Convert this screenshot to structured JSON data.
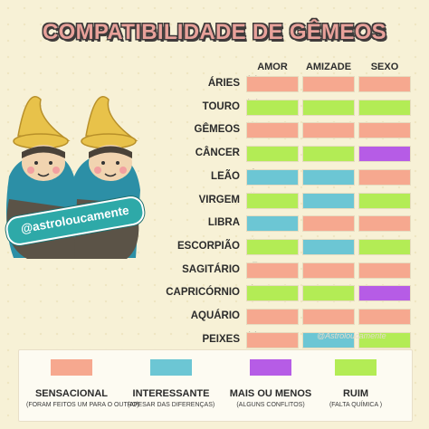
{
  "title": "COMPATIBILIDADE DE GÊMEOS",
  "columns": [
    "AMOR",
    "AMIZADE",
    "SEXO"
  ],
  "colors": {
    "sensacional": "#f6a88f",
    "interessante": "#6cc6d4",
    "mais_ou_menos": "#b65ce6",
    "ruim": "#b3ec55"
  },
  "rows": [
    {
      "name": "ÁRIES",
      "symbol": "♈",
      "values": [
        "sensacional",
        "sensacional",
        "sensacional"
      ]
    },
    {
      "name": "TOURO",
      "symbol": "♉",
      "values": [
        "ruim",
        "ruim",
        "ruim"
      ]
    },
    {
      "name": "GÊMEOS",
      "symbol": "♊",
      "values": [
        "sensacional",
        "sensacional",
        "sensacional"
      ]
    },
    {
      "name": "CÂNCER",
      "symbol": "♋",
      "values": [
        "ruim",
        "ruim",
        "mais_ou_menos"
      ]
    },
    {
      "name": "LEÃO",
      "symbol": "♌",
      "values": [
        "interessante",
        "interessante",
        "sensacional"
      ]
    },
    {
      "name": "VIRGEM",
      "symbol": "♍",
      "values": [
        "ruim",
        "interessante",
        "ruim"
      ]
    },
    {
      "name": "LIBRA",
      "symbol": "♎",
      "values": [
        "interessante",
        "sensacional",
        "sensacional"
      ]
    },
    {
      "name": "ESCORPIÃO",
      "symbol": "♏",
      "values": [
        "ruim",
        "interessante",
        "ruim"
      ]
    },
    {
      "name": "SAGITÁRIO",
      "symbol": "♐",
      "values": [
        "sensacional",
        "sensacional",
        "sensacional"
      ]
    },
    {
      "name": "CAPRICÓRNIO",
      "symbol": "♑",
      "values": [
        "ruim",
        "ruim",
        "mais_ou_menos"
      ]
    },
    {
      "name": "AQUÁRIO",
      "symbol": "♒",
      "values": [
        "sensacional",
        "sensacional",
        "sensacional"
      ]
    },
    {
      "name": "PEIXES",
      "symbol": "♓",
      "values": [
        "sensacional",
        "interessante",
        "ruim"
      ]
    }
  ],
  "legend": [
    {
      "key": "sensacional",
      "label": "SENSACIONAL",
      "sub": "(FORAM FEITOS UM PARA O OUTRO)"
    },
    {
      "key": "interessante",
      "label": "INTERESSANTE",
      "sub": "(APESAR DAS DIFERENÇAS)"
    },
    {
      "key": "mais_ou_menos",
      "label": "MAIS OU MENOS",
      "sub": "(ALGUNS CONFLITOS)"
    },
    {
      "key": "ruim",
      "label": "RUIM",
      "sub": "(FALTA QUÍMICA )"
    }
  ],
  "handle": "@astroloucamente",
  "watermark": "@Astroloucamente"
}
